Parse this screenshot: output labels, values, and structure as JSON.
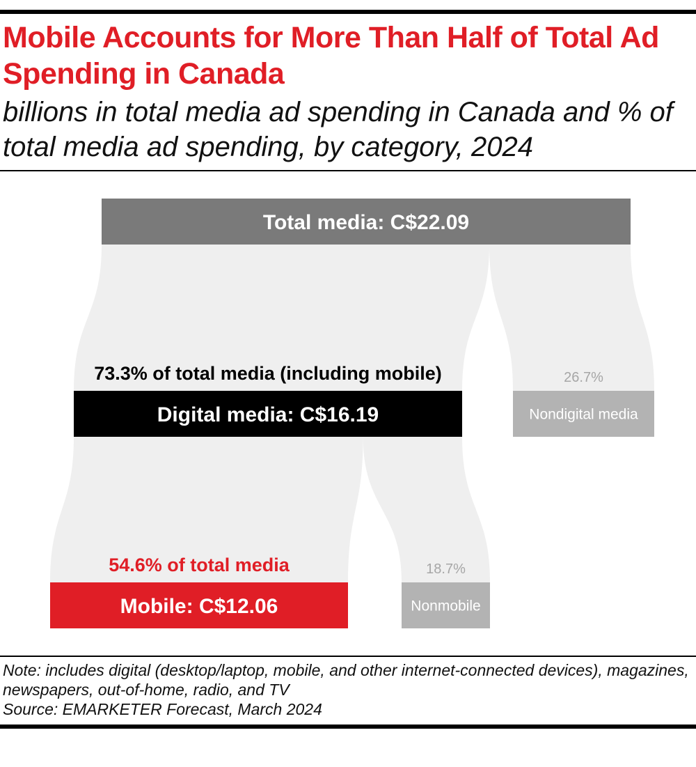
{
  "title": "Mobile Accounts for More Than Half of Total Ad Spending in Canada",
  "subtitle": "billions in total media ad spending in Canada and % of total media ad spending, by category, 2024",
  "colors": {
    "title_red": "#e01e26",
    "total_bar": "#7a7a7a",
    "digital_bar": "#000000",
    "mobile_bar": "#e01e26",
    "secondary_bar": "#b3b3b3",
    "flow": "#efefef",
    "faint_label": "#a6a6a6"
  },
  "chart_data": {
    "type": "sankey",
    "unit": "C$ billions",
    "nodes": [
      {
        "id": "total",
        "label": "Total media: C$22.09",
        "value": 22.09,
        "share_label": ""
      },
      {
        "id": "digital",
        "label": "Digital media: C$16.19",
        "value": 16.19,
        "share_label": "73.3% of total media (including mobile)"
      },
      {
        "id": "nondigital",
        "label": "Nondigital media",
        "value": 5.9,
        "share_label": "26.7%"
      },
      {
        "id": "mobile",
        "label": "Mobile: C$12.06",
        "value": 12.06,
        "share_label": "54.6% of total media"
      },
      {
        "id": "nonmobile",
        "label": "Nonmobile",
        "value": 4.13,
        "share_label": "18.7%"
      }
    ],
    "links": [
      {
        "source": "total",
        "target": "digital",
        "value": 16.19
      },
      {
        "source": "total",
        "target": "nondigital",
        "value": 5.9
      },
      {
        "source": "digital",
        "target": "mobile",
        "value": 12.06
      },
      {
        "source": "digital",
        "target": "nonmobile",
        "value": 4.13
      }
    ]
  },
  "note": "Note: includes digital (desktop/laptop, mobile, and other internet-connected devices), magazines, newspapers, out-of-home, radio, and TV",
  "source": "Source: EMARKETER Forecast, March 2024"
}
